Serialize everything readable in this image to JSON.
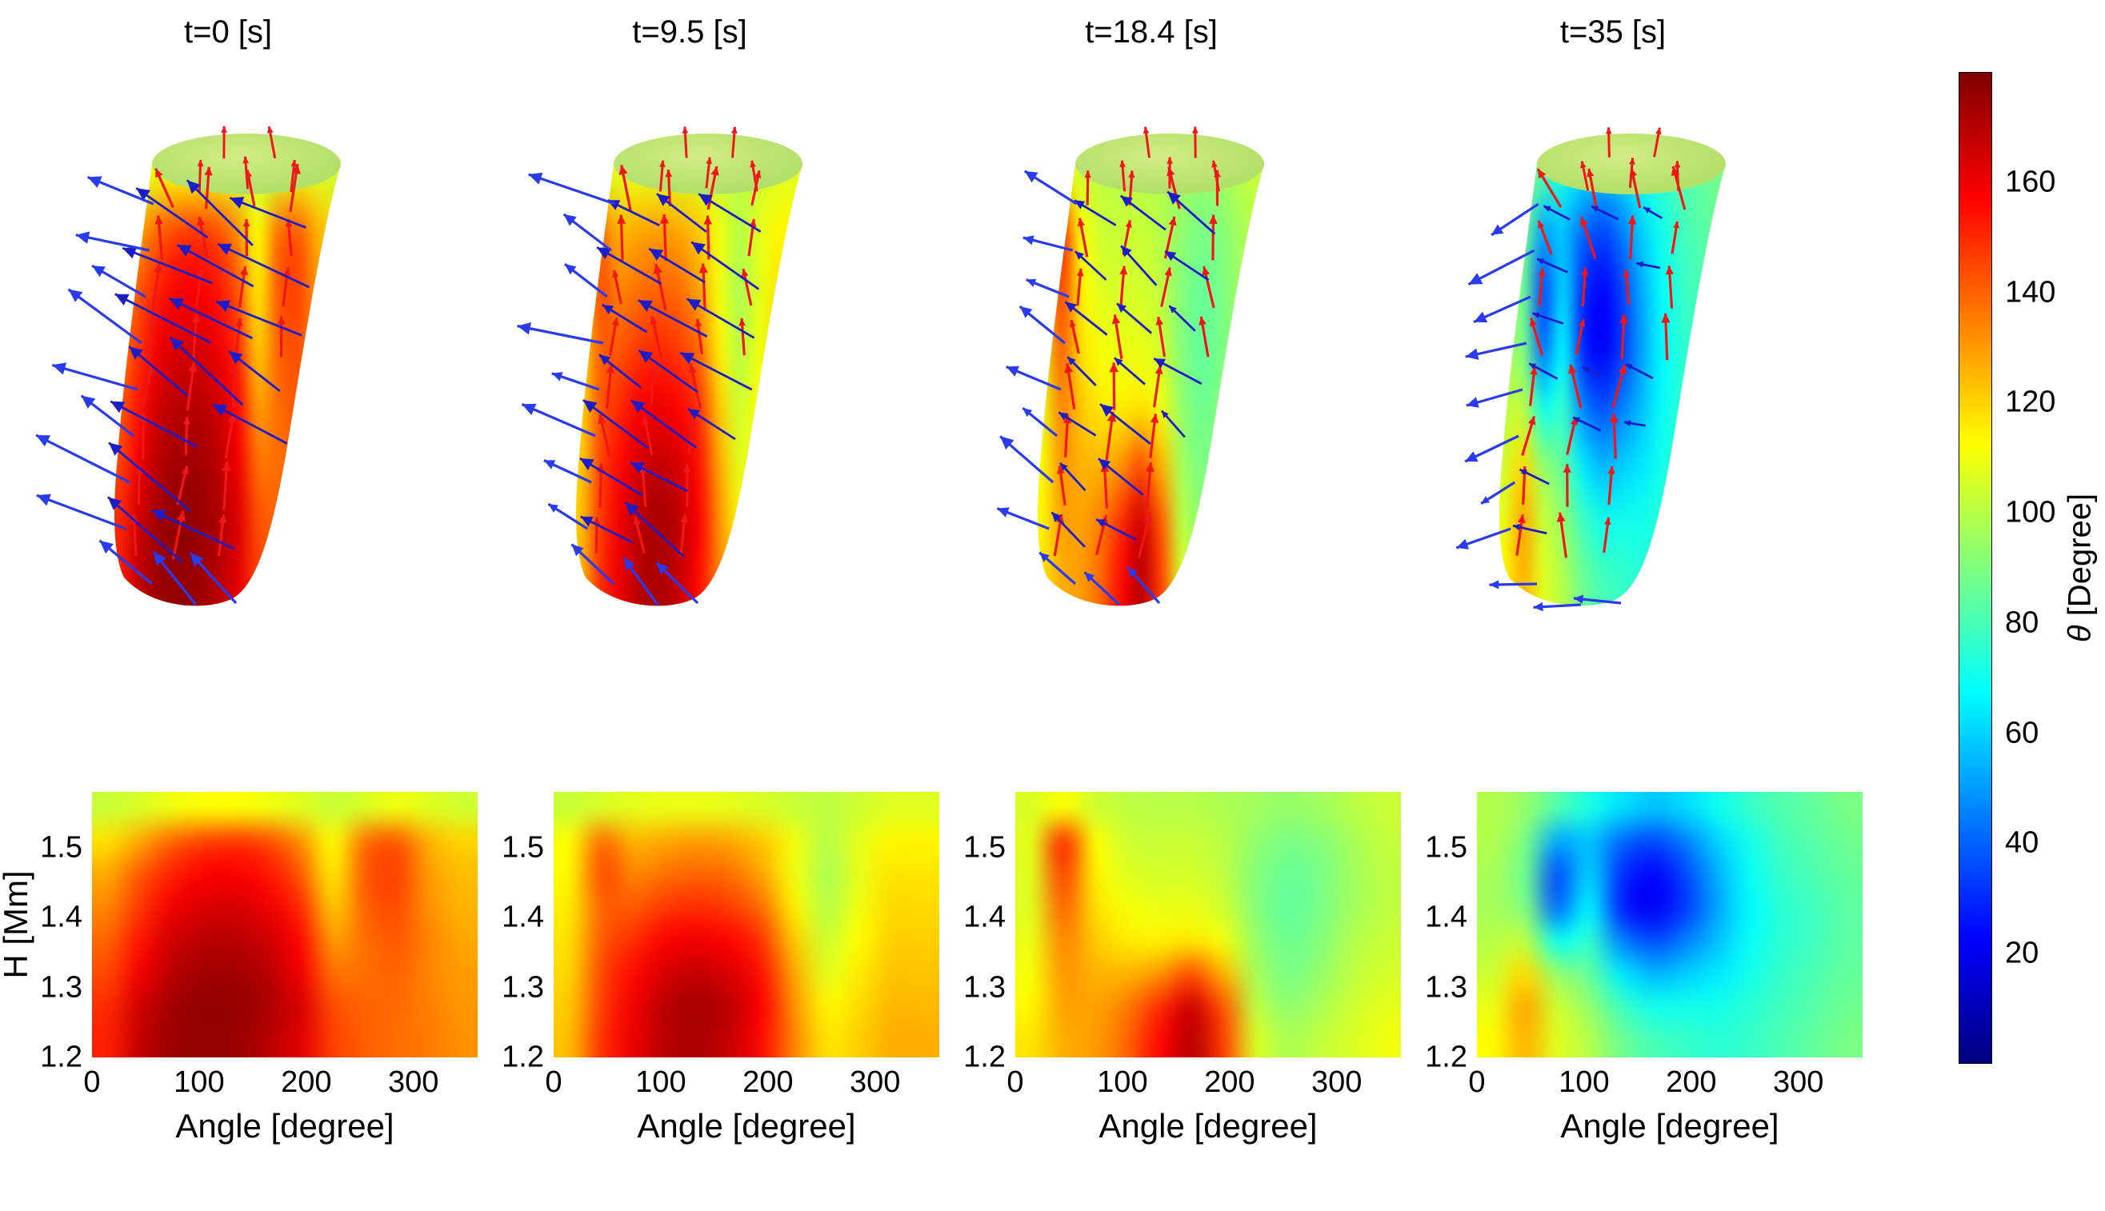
{
  "figure": {
    "background": "#ffffff",
    "colorbar": {
      "label": "θ [Degree]",
      "label_symbol": "θ",
      "label_unit": " [Degree]",
      "ticks": [
        "20",
        "40",
        "60",
        "80",
        "100",
        "120",
        "140",
        "160"
      ],
      "tick_values": [
        20,
        40,
        60,
        80,
        100,
        120,
        140,
        160
      ],
      "range": [
        0,
        180
      ],
      "colormap": "jet"
    },
    "axes": {
      "xlabel": "Angle [degree]",
      "ylabel": "H [Mm]",
      "xticks": [
        "0",
        "100",
        "200",
        "300"
      ],
      "xtick_values": [
        0,
        100,
        200,
        300
      ],
      "yticks": [
        "1.5",
        "1.4",
        "1.3",
        "1.2"
      ],
      "ytick_values": [
        1.5,
        1.4,
        1.3,
        1.2
      ],
      "xlim": [
        0,
        360
      ],
      "ylim": [
        1.2,
        1.58
      ]
    },
    "arrow_colors": {
      "red": "#ef1717",
      "surface_blue": "#1d1dc8",
      "edge_blue": "#2a3bee"
    },
    "surface_cap": {
      "inner": "#d2ec85",
      "outer": "#a9dc60"
    }
  },
  "chart_data": [
    {
      "type": "heatmap",
      "views": [
        "3d-surface-with-vector-arrows",
        "unwrapped-angle-height-map"
      ],
      "title": "t=0 [s]",
      "variable": "θ [Degree]",
      "angle_deg": [
        15,
        45,
        75,
        105,
        135,
        165,
        195,
        225,
        255,
        285,
        315,
        345
      ],
      "height_Mm": [
        1.565,
        1.52,
        1.47,
        1.42,
        1.37,
        1.32,
        1.27,
        1.215
      ],
      "theta_grid": [
        [
          103,
          106,
          110,
          112,
          112,
          110,
          107,
          103,
          106,
          110,
          107,
          104
        ],
        [
          118,
          128,
          140,
          146,
          148,
          144,
          132,
          112,
          138,
          142,
          126,
          120
        ],
        [
          128,
          142,
          152,
          158,
          158,
          154,
          142,
          116,
          142,
          146,
          130,
          124
        ],
        [
          134,
          148,
          160,
          164,
          165,
          160,
          150,
          122,
          140,
          144,
          132,
          126
        ],
        [
          140,
          154,
          166,
          170,
          170,
          166,
          156,
          130,
          138,
          142,
          134,
          128
        ],
        [
          145,
          160,
          170,
          174,
          174,
          170,
          160,
          138,
          138,
          140,
          134,
          130
        ],
        [
          150,
          166,
          174,
          177,
          176,
          172,
          164,
          144,
          140,
          139,
          135,
          131
        ],
        [
          152,
          168,
          175,
          177,
          175,
          170,
          162,
          146,
          141,
          138,
          136,
          132
        ]
      ],
      "vectors": {
        "red": {
          "length": 54,
          "tilt_spread": 14
        },
        "blue_surface": {
          "angle_deg": 213,
          "length": 105,
          "density": 0.95
        },
        "blue_edge": {
          "angle_deg": 207,
          "length": 100,
          "fan_deg": 36
        }
      }
    },
    {
      "type": "heatmap",
      "views": [
        "3d-surface-with-vector-arrows",
        "unwrapped-angle-height-map"
      ],
      "title": "t=9.5 [s]",
      "variable": "θ [Degree]",
      "angle_deg": [
        15,
        45,
        75,
        105,
        135,
        165,
        195,
        225,
        255,
        285,
        315,
        345
      ],
      "height_Mm": [
        1.565,
        1.52,
        1.47,
        1.42,
        1.37,
        1.32,
        1.27,
        1.215
      ],
      "theta_grid": [
        [
          103,
          106,
          108,
          109,
          109,
          108,
          106,
          103,
          101,
          104,
          107,
          107
        ],
        [
          112,
          138,
          126,
          128,
          130,
          128,
          122,
          110,
          100,
          108,
          114,
          114
        ],
        [
          114,
          144,
          134,
          138,
          140,
          138,
          128,
          110,
          98,
          108,
          117,
          117
        ],
        [
          116,
          140,
          142,
          148,
          150,
          147,
          138,
          115,
          100,
          110,
          119,
          119
        ],
        [
          118,
          142,
          150,
          158,
          160,
          157,
          148,
          122,
          104,
          113,
          121,
          121
        ],
        [
          120,
          145,
          156,
          165,
          168,
          164,
          154,
          128,
          108,
          116,
          123,
          123
        ],
        [
          122,
          147,
          160,
          170,
          173,
          169,
          157,
          132,
          114,
          119,
          125,
          125
        ],
        [
          124,
          149,
          161,
          170,
          172,
          167,
          155,
          134,
          117,
          121,
          127,
          127
        ]
      ],
      "vectors": {
        "red": {
          "length": 52,
          "tilt_spread": 15
        },
        "blue_surface": {
          "angle_deg": 214,
          "length": 85,
          "density": 0.95
        },
        "blue_edge": {
          "angle_deg": 208,
          "length": 85,
          "fan_deg": 34
        }
      }
    },
    {
      "type": "heatmap",
      "views": [
        "3d-surface-with-vector-arrows",
        "unwrapped-angle-height-map"
      ],
      "title": "t=18.4 [s]",
      "variable": "θ [Degree]",
      "angle_deg": [
        15,
        45,
        75,
        105,
        135,
        165,
        195,
        225,
        255,
        285,
        315,
        345
      ],
      "height_Mm": [
        1.565,
        1.52,
        1.47,
        1.42,
        1.37,
        1.32,
        1.27,
        1.215
      ],
      "theta_grid": [
        [
          106,
          112,
          104,
          101,
          100,
          100,
          98,
          96,
          94,
          96,
          100,
          103
        ],
        [
          108,
          150,
          112,
          104,
          103,
          103,
          100,
          93,
          89,
          91,
          97,
          102
        ],
        [
          107,
          146,
          115,
          107,
          105,
          105,
          101,
          91,
          86,
          89,
          96,
          101
        ],
        [
          107,
          140,
          118,
          111,
          109,
          109,
          104,
          91,
          85,
          89,
          96,
          101
        ],
        [
          109,
          134,
          122,
          116,
          115,
          117,
          110,
          94,
          87,
          91,
          99,
          103
        ],
        [
          111,
          131,
          126,
          126,
          132,
          144,
          126,
          97,
          89,
          94,
          101,
          105
        ],
        [
          114,
          129,
          129,
          136,
          150,
          166,
          142,
          101,
          93,
          98,
          104,
          108
        ],
        [
          117,
          127,
          130,
          140,
          156,
          170,
          146,
          106,
          98,
          102,
          106,
          110
        ]
      ],
      "vectors": {
        "red": {
          "length": 52,
          "tilt_spread": 16
        },
        "blue_surface": {
          "angle_deg": 217,
          "length": 62,
          "density": 0.9
        },
        "blue_edge": {
          "angle_deg": 210,
          "length": 70,
          "fan_deg": 32
        }
      }
    },
    {
      "type": "heatmap",
      "views": [
        "3d-surface-with-vector-arrows",
        "unwrapped-angle-height-map"
      ],
      "title": "t=35 [s]",
      "variable": "θ [Degree]",
      "angle_deg": [
        15,
        45,
        75,
        105,
        135,
        165,
        195,
        225,
        255,
        285,
        315,
        345
      ],
      "height_Mm": [
        1.565,
        1.52,
        1.47,
        1.42,
        1.37,
        1.32,
        1.27,
        1.215
      ],
      "theta_grid": [
        [
          99,
          94,
          82,
          72,
          62,
          57,
          61,
          70,
          77,
          82,
          85,
          89
        ],
        [
          99,
          89,
          52,
          57,
          41,
          35,
          45,
          60,
          71,
          79,
          83,
          87
        ],
        [
          97,
          87,
          36,
          60,
          31,
          23,
          35,
          54,
          69,
          77,
          81,
          85
        ],
        [
          97,
          90,
          42,
          66,
          29,
          21,
          33,
          52,
          67,
          75,
          79,
          84
        ],
        [
          100,
          101,
          70,
          76,
          46,
          36,
          45,
          57,
          69,
          75,
          79,
          84
        ],
        [
          104,
          119,
          94,
          85,
          64,
          55,
          59,
          64,
          71,
          77,
          81,
          85
        ],
        [
          109,
          128,
          104,
          94,
          79,
          71,
          71,
          71,
          75,
          79,
          83,
          87
        ],
        [
          113,
          126,
          107,
          99,
          87,
          80,
          77,
          75,
          77,
          81,
          85,
          89
        ]
      ],
      "vectors": {
        "red": {
          "length": 50,
          "tilt_spread": 22
        },
        "blue_surface": {
          "angle_deg": 200,
          "length": 34,
          "density": 0.72
        },
        "blue_edge": {
          "angle_deg": 160,
          "length": 70,
          "fan_deg": 40
        }
      }
    }
  ]
}
